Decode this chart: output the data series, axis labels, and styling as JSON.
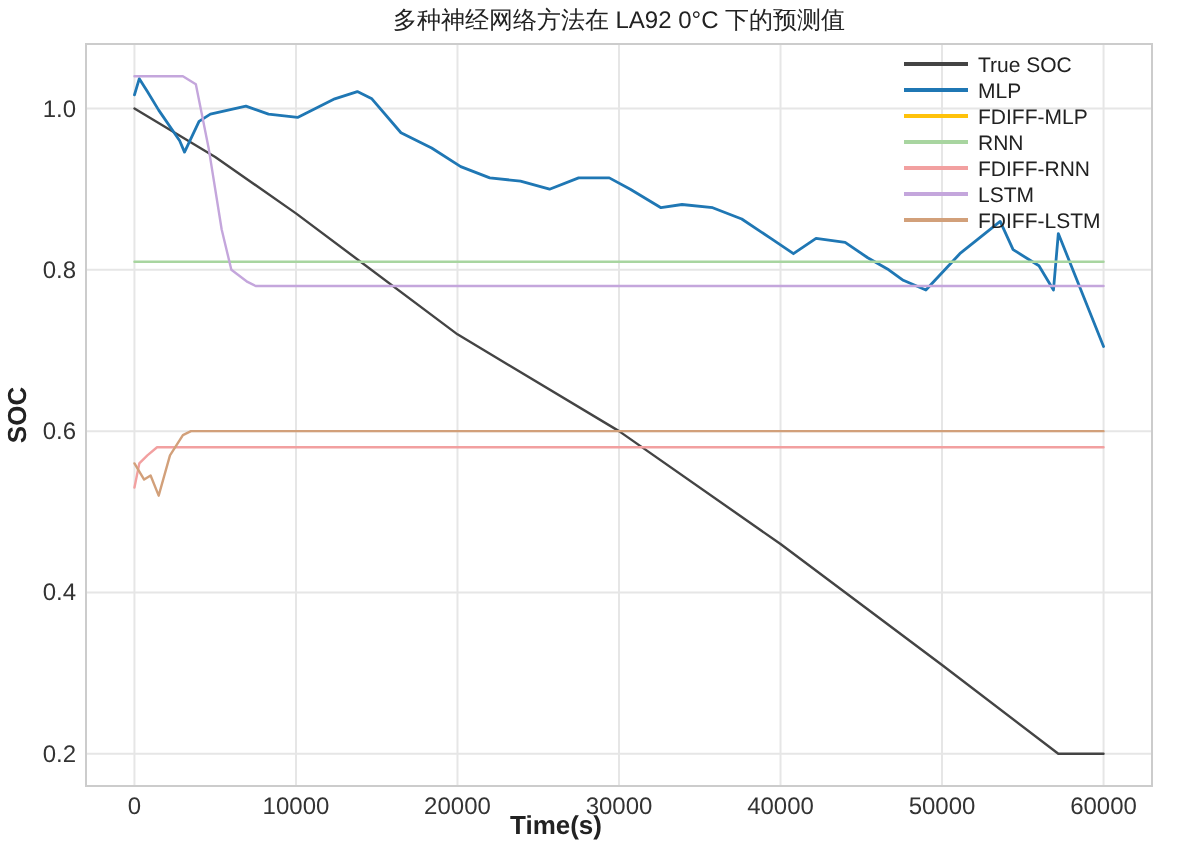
{
  "chart_data": {
    "type": "line",
    "title": "多种神经网络方法在 LA92 0°C 下的预测值",
    "xlabel": "Time(s)",
    "ylabel": "SOC",
    "xlim": [
      -3000,
      63000
    ],
    "ylim": [
      0.16,
      1.08
    ],
    "xticks": [
      0,
      10000,
      20000,
      30000,
      40000,
      50000,
      60000
    ],
    "yticks": [
      {
        "value": 0.2,
        "label": "0.2"
      },
      {
        "value": 0.4,
        "label": "0.4"
      },
      {
        "value": 0.6,
        "label": "0.6"
      },
      {
        "value": 0.8,
        "label": "0.8"
      },
      {
        "value": 1,
        "label": "1.0"
      }
    ],
    "grid": true,
    "legend": "top right",
    "series": [
      {
        "name": "True SOC",
        "color": "#444444",
        "x": [
          0,
          5000,
          10000,
          20000,
          30000,
          40000,
          50000,
          57200,
          60000
        ],
        "values": [
          1.0,
          0.94,
          0.87,
          0.72,
          0.6,
          0.46,
          0.31,
          0.2,
          0.2
        ]
      },
      {
        "name": "MLP",
        "color": "#1f77b4",
        "x": [
          0,
          300,
          800,
          1500,
          2800,
          3100,
          4000,
          4700,
          6900,
          8300,
          10100,
          12400,
          13800,
          14700,
          16500,
          18400,
          20200,
          22000,
          23900,
          25700,
          27500,
          29400,
          30700,
          32600,
          33900,
          35800,
          37600,
          39400,
          40800,
          42200,
          44000,
          45400,
          46700,
          47600,
          49000,
          51100,
          53600,
          54400,
          56000,
          56900,
          57200,
          60000
        ],
        "values": [
          1.017,
          1.037,
          1.021,
          0.998,
          0.96,
          0.946,
          0.984,
          0.993,
          1.003,
          0.993,
          0.989,
          1.012,
          1.021,
          1.012,
          0.97,
          0.951,
          0.928,
          0.914,
          0.91,
          0.9,
          0.914,
          0.914,
          0.9,
          0.877,
          0.881,
          0.877,
          0.863,
          0.839,
          0.82,
          0.839,
          0.834,
          0.815,
          0.8,
          0.787,
          0.775,
          0.82,
          0.86,
          0.825,
          0.805,
          0.775,
          0.845,
          0.705
        ]
      },
      {
        "name": "FDIFF-MLP",
        "color": "#ffc20a"
      },
      {
        "name": "RNN",
        "color": "#a8d5a0",
        "x": [
          0,
          60000
        ],
        "values": [
          0.81,
          0.81
        ]
      },
      {
        "name": "FDIFF-RNN",
        "color": "#f2a0a0",
        "x": [
          0,
          300,
          800,
          1400,
          2000,
          60000
        ],
        "values": [
          0.53,
          0.56,
          0.57,
          0.58,
          0.58,
          0.58
        ]
      },
      {
        "name": "LSTM",
        "color": "#c4a6dc",
        "x": [
          0,
          3000,
          3800,
          4600,
          5400,
          6000,
          7000,
          7500,
          60000
        ],
        "values": [
          1.04,
          1.04,
          1.03,
          0.95,
          0.85,
          0.8,
          0.785,
          0.78,
          0.78
        ]
      },
      {
        "name": "FDIFF-LSTM",
        "color": "#d2a07a",
        "x": [
          0,
          600,
          1000,
          1500,
          2200,
          3000,
          3500,
          60000
        ],
        "values": [
          0.56,
          0.54,
          0.545,
          0.52,
          0.57,
          0.595,
          0.6,
          0.6
        ]
      }
    ]
  }
}
